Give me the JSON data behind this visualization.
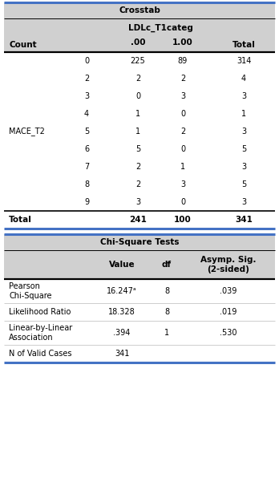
{
  "crosstab_title": "Crosstab",
  "chi_square_title": "Chi-Square Tests",
  "header_bg": "#d0d0d0",
  "white_bg": "#ffffff",
  "border_color": "#4472c4",
  "crosstab_col_header": "LDLc_T1categ",
  "crosstab_row_label": "Count",
  "mace_label": "MACE_T2",
  "total_label": "Total",
  "mace_rows": [
    {
      "mace": "0",
      "v00": "225",
      "v100": "89",
      "total": "314"
    },
    {
      "mace": "2",
      "v00": "2",
      "v100": "2",
      "total": "4"
    },
    {
      "mace": "3",
      "v00": "0",
      "v100": "3",
      "total": "3"
    },
    {
      "mace": "4",
      "v00": "1",
      "v100": "0",
      "total": "1"
    },
    {
      "mace": "5",
      "v00": "1",
      "v100": "2",
      "total": "3"
    },
    {
      "mace": "6",
      "v00": "5",
      "v100": "0",
      "total": "5"
    },
    {
      "mace": "7",
      "v00": "2",
      "v100": "1",
      "total": "3"
    },
    {
      "mace": "8",
      "v00": "2",
      "v100": "3",
      "total": "5"
    },
    {
      "mace": "9",
      "v00": "3",
      "v100": "0",
      "total": "3"
    }
  ],
  "total_row": {
    "v00": "241",
    "v100": "100",
    "total": "341"
  },
  "chi_rows": [
    {
      "label": "Pearson\nChi-Square",
      "value": "16.247ᵃ",
      "df": "8",
      "sig": ".039"
    },
    {
      "label": "Likelihood Ratio",
      "value": "18.328",
      "df": "8",
      "sig": ".019"
    },
    {
      "label": "Linear-by-Linear\nAssociation",
      "value": ".394",
      "df": "1",
      "sig": ".530"
    },
    {
      "label": "N of Valid Cases",
      "value": "341",
      "df": "",
      "sig": ""
    }
  ],
  "fs": 7.0,
  "bfs": 7.5
}
